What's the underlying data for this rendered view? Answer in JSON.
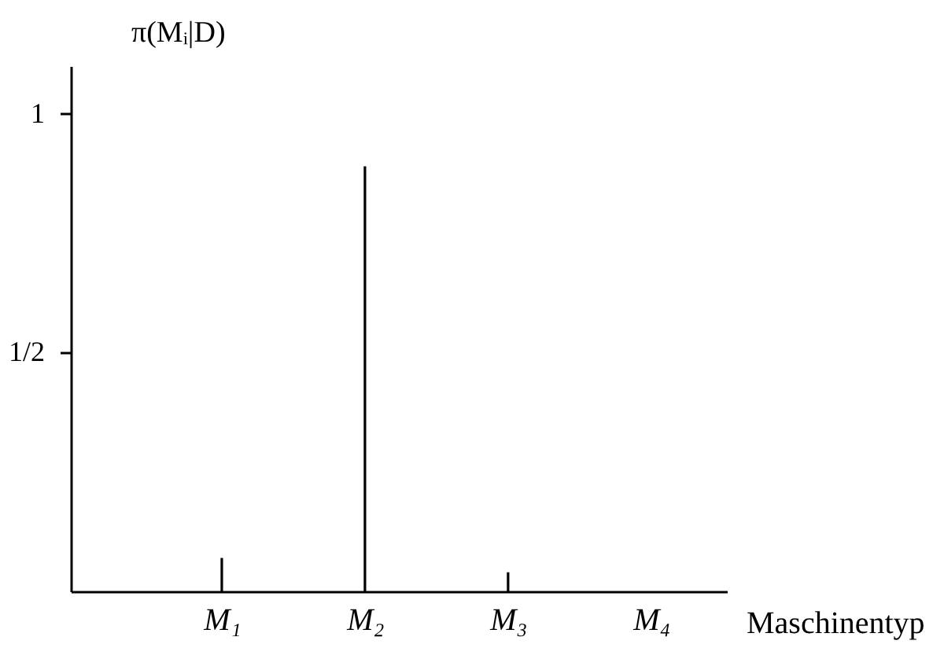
{
  "chart_data": {
    "type": "bar",
    "ylabel": "π(Mᵢ|D)",
    "xlabel": "Maschinentyp",
    "categories": [
      "M₁",
      "M₂",
      "M₃",
      "M₄"
    ],
    "values": [
      0.07,
      0.89,
      0.04,
      0
    ],
    "color": "#000000",
    "ylim": [
      0,
      1.1
    ],
    "yticks": [
      {
        "value": 0.5,
        "label": "1/2"
      },
      1
    ]
  }
}
